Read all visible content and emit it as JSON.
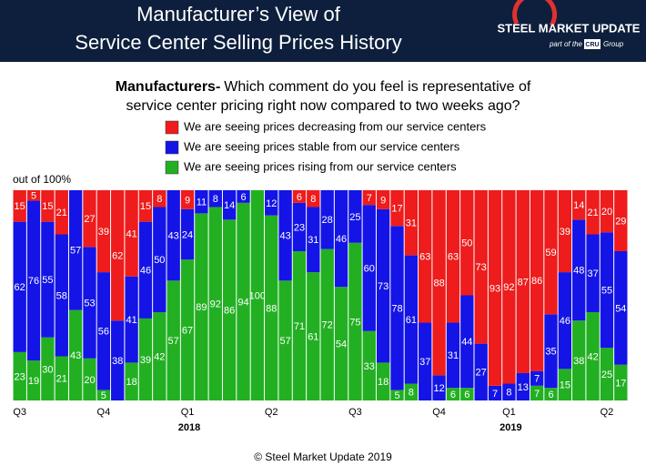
{
  "chart_data": {
    "type": "stacked_bar",
    "title": [
      "Manufacturer’s View of",
      "Service Center Selling Prices History"
    ],
    "brand": {
      "name": "STEEL MARKET UPDATE",
      "tagline": "part of the",
      "group_mark": "CRU",
      "group": "Group"
    },
    "question_lead": "Manufacturers-",
    "question": [
      "Which comment do you feel is representative of",
      "service center pricing right now compared to two weeks ago?"
    ],
    "y_note": "out of 100%",
    "footer": "© Steel Market Update 2019",
    "ylim": [
      0,
      100
    ],
    "categories": [
      "Q3",
      null,
      null,
      null,
      null,
      null,
      "Q4",
      null,
      null,
      null,
      null,
      null,
      "Q1",
      null,
      null,
      null,
      null,
      null,
      "Q2",
      null,
      null,
      null,
      null,
      null,
      "Q3",
      null,
      null,
      null,
      null,
      null,
      "Q4",
      null,
      null,
      null,
      null,
      "Q1",
      null,
      null,
      null,
      null,
      null,
      null,
      "Q2",
      null
    ],
    "years": [
      null,
      null,
      null,
      null,
      null,
      null,
      null,
      null,
      null,
      null,
      null,
      null,
      "2018",
      null,
      null,
      null,
      null,
      null,
      null,
      null,
      null,
      null,
      null,
      null,
      null,
      null,
      null,
      null,
      null,
      null,
      null,
      null,
      null,
      null,
      null,
      "2019",
      null,
      null,
      null,
      null,
      null,
      null,
      null,
      null
    ],
    "series": [
      {
        "name": "We are seeing prices decreasing from our service centers",
        "color": "#ee1c1c",
        "values": [
          15,
          5,
          15,
          21,
          0,
          27,
          39,
          62,
          41,
          15,
          8,
          0,
          9,
          0,
          0,
          0,
          0,
          0,
          0,
          0,
          6,
          8,
          0,
          0,
          0,
          7,
          9,
          17,
          31,
          63,
          88,
          63,
          50,
          73,
          93,
          92,
          87,
          86,
          59,
          39,
          14,
          21,
          20,
          29
        ]
      },
      {
        "name": "We are seeing prices stable from our service centers",
        "color": "#1414e6",
        "values": [
          62,
          76,
          55,
          58,
          57,
          53,
          56,
          38,
          41,
          46,
          50,
          43,
          24,
          11,
          8,
          14,
          6,
          0,
          12,
          43,
          23,
          31,
          28,
          46,
          25,
          60,
          73,
          78,
          61,
          37,
          12,
          31,
          44,
          27,
          7,
          8,
          13,
          7,
          35,
          46,
          48,
          37,
          55,
          54
        ]
      },
      {
        "name": "We are seeing prices rising from our service centers",
        "color": "#22b022",
        "values": [
          23,
          19,
          30,
          21,
          43,
          20,
          5,
          0,
          18,
          39,
          42,
          57,
          67,
          89,
          92,
          86,
          94,
          100,
          88,
          57,
          71,
          61,
          72,
          54,
          75,
          33,
          18,
          5,
          8,
          0,
          0,
          6,
          6,
          0,
          0,
          0,
          0,
          7,
          6,
          15,
          38,
          42,
          25,
          17
        ]
      }
    ]
  }
}
